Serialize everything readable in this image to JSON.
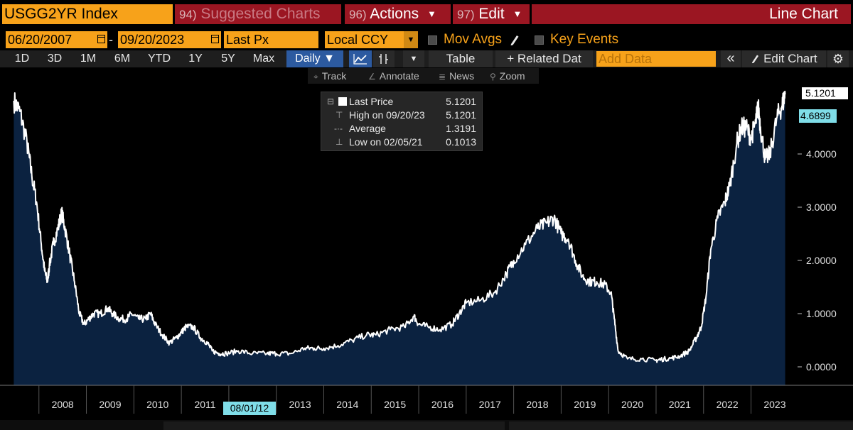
{
  "header": {
    "ticker": "USGG2YR Index",
    "menus": [
      {
        "num": "94)",
        "label": "Suggested Charts",
        "caret": false,
        "dim": true
      },
      {
        "num": "96)",
        "label": "Actions",
        "caret": true,
        "dim": false
      },
      {
        "num": "97)",
        "label": "Edit",
        "caret": true,
        "dim": false
      }
    ],
    "title": "Line Chart"
  },
  "controls": {
    "start_date": "06/20/2007",
    "end_date": "09/20/2023",
    "date_sep": "-",
    "field": "Last Px",
    "currency": "Local CCY",
    "mov_avgs": "Mov Avgs",
    "key_events": "Key Events"
  },
  "periods": [
    "1D",
    "3D",
    "1M",
    "6M",
    "YTD",
    "1Y",
    "5Y",
    "Max"
  ],
  "frequency": "Daily",
  "toolbar": {
    "table": "Table",
    "related": "+ Related Dat",
    "add_data_placeholder": "Add Data",
    "edit_chart": "Edit Chart",
    "collapse": "«",
    "gear": "⚙"
  },
  "tools": [
    "Track",
    "Annotate",
    "News",
    "Zoom"
  ],
  "legend": {
    "last_label": "Last Price",
    "last_value": "5.1201",
    "high_label": "High on 09/20/23",
    "high_value": "5.1201",
    "avg_label": "Average",
    "avg_value": "1.3191",
    "low_label": "Low on 02/05/21",
    "low_value": "0.1013"
  },
  "tags": {
    "last": "5.1201",
    "avg": "4.6899",
    "date": "08/01/12"
  },
  "colors": {
    "accent_orange": "#f7a21a",
    "menu_red": "#9b1622",
    "area_fill": "#0b2240",
    "line": "#ffffff",
    "tag_cyan": "#7fdde8"
  },
  "chart_data": {
    "type": "area",
    "series": [
      {
        "name": "Last Price",
        "x": [
          2007.47,
          2007.6,
          2007.75,
          2007.85,
          2007.95,
          2008.05,
          2008.12,
          2008.18,
          2008.22,
          2008.3,
          2008.4,
          2008.48,
          2008.55,
          2008.65,
          2008.75,
          2008.85,
          2008.95,
          2009.05,
          2009.15,
          2009.3,
          2009.45,
          2009.55,
          2009.7,
          2009.85,
          2009.95,
          2010.1,
          2010.25,
          2010.35,
          2010.45,
          2010.6,
          2010.75,
          2010.9,
          2011.0,
          2011.1,
          2011.25,
          2011.4,
          2011.55,
          2011.65,
          2011.8,
          2011.95,
          2012.2,
          2012.5,
          2012.8,
          2013.0,
          2013.3,
          2013.6,
          2013.8,
          2014.0,
          2014.3,
          2014.6,
          2014.9,
          2015.1,
          2015.4,
          2015.7,
          2015.9,
          2016.0,
          2016.2,
          2016.45,
          2016.7,
          2016.85,
          2017.0,
          2017.3,
          2017.6,
          2017.85,
          2018.0,
          2018.25,
          2018.5,
          2018.7,
          2018.85,
          2019.0,
          2019.15,
          2019.3,
          2019.45,
          2019.6,
          2019.75,
          2019.9,
          2020.05,
          2020.12,
          2020.2,
          2020.4,
          2020.7,
          2021.0,
          2021.1,
          2021.3,
          2021.5,
          2021.7,
          2021.85,
          2021.95,
          2022.05,
          2022.15,
          2022.3,
          2022.45,
          2022.55,
          2022.7,
          2022.8,
          2022.9,
          2023.0,
          2023.1,
          2023.15,
          2023.2,
          2023.3,
          2023.4,
          2023.55,
          2023.65,
          2023.72
        ],
        "values": [
          5.0,
          4.8,
          4.2,
          3.6,
          3.1,
          2.3,
          1.8,
          1.6,
          1.9,
          2.3,
          2.6,
          2.9,
          2.6,
          2.1,
          1.6,
          1.0,
          0.8,
          0.9,
          1.0,
          1.0,
          1.1,
          1.0,
          0.9,
          0.9,
          1.0,
          0.9,
          0.9,
          1.0,
          0.8,
          0.6,
          0.45,
          0.55,
          0.65,
          0.75,
          0.75,
          0.55,
          0.45,
          0.3,
          0.25,
          0.25,
          0.3,
          0.25,
          0.25,
          0.25,
          0.25,
          0.35,
          0.35,
          0.35,
          0.4,
          0.5,
          0.6,
          0.6,
          0.7,
          0.75,
          0.95,
          0.8,
          0.75,
          0.7,
          0.8,
          1.0,
          1.2,
          1.25,
          1.4,
          1.75,
          2.0,
          2.3,
          2.6,
          2.7,
          2.8,
          2.5,
          2.4,
          2.0,
          1.7,
          1.6,
          1.6,
          1.55,
          1.4,
          0.9,
          0.3,
          0.15,
          0.15,
          0.12,
          0.14,
          0.16,
          0.2,
          0.3,
          0.55,
          0.75,
          1.3,
          2.2,
          2.8,
          3.1,
          3.4,
          4.2,
          4.5,
          4.5,
          4.3,
          4.6,
          4.9,
          4.5,
          3.9,
          4.0,
          4.7,
          4.9,
          5.12
        ]
      }
    ],
    "ylim": [
      0,
      5.15
    ],
    "yticks": [
      0,
      1,
      2,
      3,
      4
    ],
    "ytick_labels": [
      "0.0000",
      "1.0000",
      "2.0000",
      "3.0000",
      "4.0000"
    ],
    "xlim": [
      2007.3,
      2023.95
    ],
    "xticks": [
      2008,
      2009,
      2010,
      2011,
      2012,
      2013,
      2014,
      2015,
      2016,
      2017,
      2018,
      2019,
      2020,
      2021,
      2022,
      2023
    ],
    "xtick_labels": [
      "2008",
      "2009",
      "2010",
      "2011",
      "",
      "2013",
      "2014",
      "2015",
      "2016",
      "2017",
      "2018",
      "2019",
      "2020",
      "2021",
      "2022",
      "2023"
    ],
    "grid": false
  }
}
